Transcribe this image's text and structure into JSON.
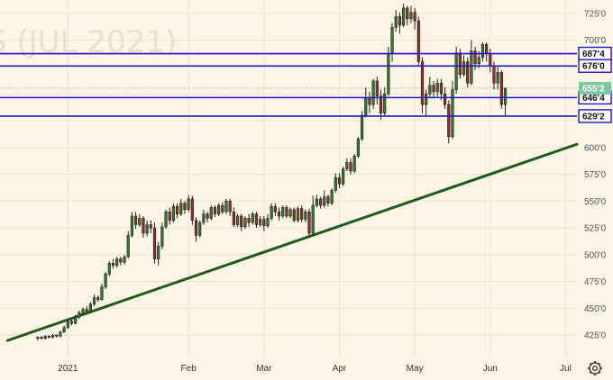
{
  "chart_data": {
    "type": "candlestick",
    "watermark": "S (JUL 2021)",
    "y_axis": {
      "ylim": [
        405,
        737.5
      ],
      "ticks": [
        "725'0",
        "700'0",
        "675'0",
        "650'0",
        "625'0",
        "600'0",
        "575'0",
        "550'0",
        "525'0",
        "500'0",
        "475'0",
        "450'0",
        "425'0"
      ],
      "tick_values": [
        725,
        700,
        675,
        650,
        625,
        600,
        575,
        550,
        525,
        500,
        475,
        450,
        425
      ]
    },
    "x_axis": {
      "labels": [
        "2021",
        "Feb",
        "Mar",
        "Apr",
        "May",
        "Jun",
        "Jul"
      ],
      "positions": [
        8,
        40,
        60,
        80,
        100,
        120,
        140
      ]
    },
    "x_range": [
      -10,
      143
    ],
    "current_price": {
      "label": "655'2",
      "value": 655.25
    },
    "levels": [
      {
        "label": "687'4",
        "value": 687.5
      },
      {
        "label": "676'0",
        "value": 676.0
      },
      {
        "label": "646'4",
        "value": 646.5
      },
      {
        "label": "629'2",
        "value": 629.25
      }
    ],
    "trendline": {
      "x1": -8,
      "y1": 420,
      "x2": 143,
      "y2": 603
    },
    "candles": [
      [
        422,
        423,
        420,
        424
      ],
      [
        423,
        422,
        421,
        424
      ],
      [
        422,
        424,
        421,
        425
      ],
      [
        424,
        423,
        422,
        425
      ],
      [
        423,
        425,
        422,
        426
      ],
      [
        425,
        424,
        423,
        426
      ],
      [
        424,
        428,
        423,
        429
      ],
      [
        428,
        432,
        427,
        434
      ],
      [
        432,
        438,
        431,
        439
      ],
      [
        438,
        436,
        434,
        440
      ],
      [
        436,
        442,
        435,
        444
      ],
      [
        442,
        446,
        440,
        448
      ],
      [
        446,
        449,
        444,
        451
      ],
      [
        449,
        447,
        445,
        452
      ],
      [
        447,
        454,
        446,
        456
      ],
      [
        454,
        460,
        452,
        463
      ],
      [
        460,
        458,
        456,
        462
      ],
      [
        458,
        470,
        457,
        473
      ],
      [
        470,
        482,
        468,
        484
      ],
      [
        482,
        492,
        480,
        494
      ],
      [
        492,
        490,
        487,
        496
      ],
      [
        490,
        496,
        488,
        498
      ],
      [
        496,
        493,
        490,
        498
      ],
      [
        493,
        498,
        491,
        500
      ],
      [
        498,
        518,
        497,
        522
      ],
      [
        518,
        536,
        516,
        540
      ],
      [
        536,
        528,
        524,
        540
      ],
      [
        528,
        534,
        526,
        538
      ],
      [
        534,
        520,
        516,
        536
      ],
      [
        520,
        528,
        517,
        532
      ],
      [
        528,
        525,
        520,
        532
      ],
      [
        525,
        496,
        492,
        530
      ],
      [
        496,
        508,
        490,
        512
      ],
      [
        508,
        526,
        505,
        530
      ],
      [
        526,
        540,
        524,
        542
      ],
      [
        540,
        532,
        528,
        544
      ],
      [
        532,
        545,
        530,
        548
      ],
      [
        545,
        538,
        534,
        548
      ],
      [
        538,
        548,
        536,
        552
      ],
      [
        548,
        542,
        538,
        550
      ],
      [
        542,
        552,
        540,
        556
      ],
      [
        552,
        532,
        528,
        555
      ],
      [
        532,
        518,
        512,
        535
      ],
      [
        518,
        530,
        516,
        532
      ],
      [
        530,
        538,
        528,
        542
      ],
      [
        538,
        534,
        530,
        540
      ],
      [
        534,
        544,
        532,
        546
      ],
      [
        544,
        538,
        535,
        546
      ],
      [
        538,
        546,
        536,
        548
      ],
      [
        546,
        540,
        538,
        549
      ],
      [
        540,
        550,
        538,
        552
      ],
      [
        550,
        540,
        536,
        552
      ],
      [
        540,
        528,
        526,
        544
      ],
      [
        528,
        536,
        526,
        538
      ],
      [
        536,
        526,
        522,
        538
      ],
      [
        526,
        534,
        524,
        536
      ],
      [
        534,
        530,
        526,
        538
      ],
      [
        530,
        538,
        528,
        540
      ],
      [
        538,
        528,
        525,
        540
      ],
      [
        528,
        533,
        526,
        536
      ],
      [
        533,
        527,
        522,
        536
      ],
      [
        527,
        534,
        525,
        538
      ],
      [
        534,
        545,
        532,
        548
      ],
      [
        545,
        540,
        536,
        548
      ],
      [
        540,
        536,
        532,
        544
      ],
      [
        536,
        544,
        534,
        546
      ],
      [
        544,
        536,
        534,
        546
      ],
      [
        536,
        542,
        534,
        544
      ],
      [
        542,
        532,
        530,
        544
      ],
      [
        532,
        543,
        530,
        545
      ],
      [
        543,
        533,
        530,
        546
      ],
      [
        533,
        540,
        530,
        542
      ],
      [
        540,
        520,
        517,
        543
      ],
      [
        520,
        546,
        518,
        555
      ],
      [
        546,
        552,
        544,
        556
      ],
      [
        552,
        546,
        543,
        554
      ],
      [
        546,
        554,
        544,
        560
      ],
      [
        554,
        548,
        545,
        556
      ],
      [
        548,
        560,
        546,
        562
      ],
      [
        560,
        572,
        558,
        576
      ],
      [
        572,
        566,
        562,
        576
      ],
      [
        566,
        580,
        564,
        582
      ],
      [
        580,
        586,
        578,
        590
      ],
      [
        586,
        578,
        575,
        590
      ],
      [
        578,
        592,
        576,
        594
      ],
      [
        592,
        608,
        590,
        610
      ],
      [
        608,
        630,
        606,
        634
      ],
      [
        630,
        646,
        628,
        656
      ],
      [
        646,
        640,
        632,
        652
      ],
      [
        640,
        662,
        636,
        664
      ],
      [
        662,
        648,
        640,
        666
      ],
      [
        648,
        632,
        626,
        654
      ],
      [
        632,
        650,
        630,
        656
      ],
      [
        650,
        688,
        648,
        694
      ],
      [
        688,
        712,
        680,
        716
      ],
      [
        712,
        722,
        708,
        728
      ],
      [
        722,
        714,
        706,
        726
      ],
      [
        714,
        730,
        712,
        734
      ],
      [
        730,
        720,
        714,
        732
      ],
      [
        720,
        726,
        716,
        732
      ],
      [
        726,
        718,
        710,
        730
      ],
      [
        718,
        680,
        676,
        722
      ],
      [
        680,
        640,
        632,
        684
      ],
      [
        640,
        650,
        630,
        654
      ],
      [
        650,
        658,
        646,
        666
      ],
      [
        658,
        652,
        646,
        662
      ],
      [
        652,
        660,
        646,
        664
      ],
      [
        660,
        650,
        644,
        664
      ],
      [
        650,
        640,
        636,
        656
      ],
      [
        640,
        610,
        604,
        644
      ],
      [
        610,
        654,
        608,
        662
      ],
      [
        654,
        688,
        650,
        694
      ],
      [
        688,
        668,
        664,
        692
      ],
      [
        668,
        680,
        666,
        686
      ],
      [
        680,
        660,
        656,
        684
      ],
      [
        660,
        690,
        658,
        700
      ],
      [
        690,
        678,
        672,
        694
      ],
      [
        678,
        684,
        674,
        690
      ],
      [
        684,
        696,
        680,
        698
      ],
      [
        696,
        688,
        680,
        698
      ],
      [
        688,
        676,
        670,
        692
      ],
      [
        676,
        660,
        654,
        680
      ],
      [
        660,
        670,
        654,
        676
      ],
      [
        670,
        640,
        636,
        672
      ],
      [
        640,
        655,
        630,
        656
      ]
    ]
  }
}
